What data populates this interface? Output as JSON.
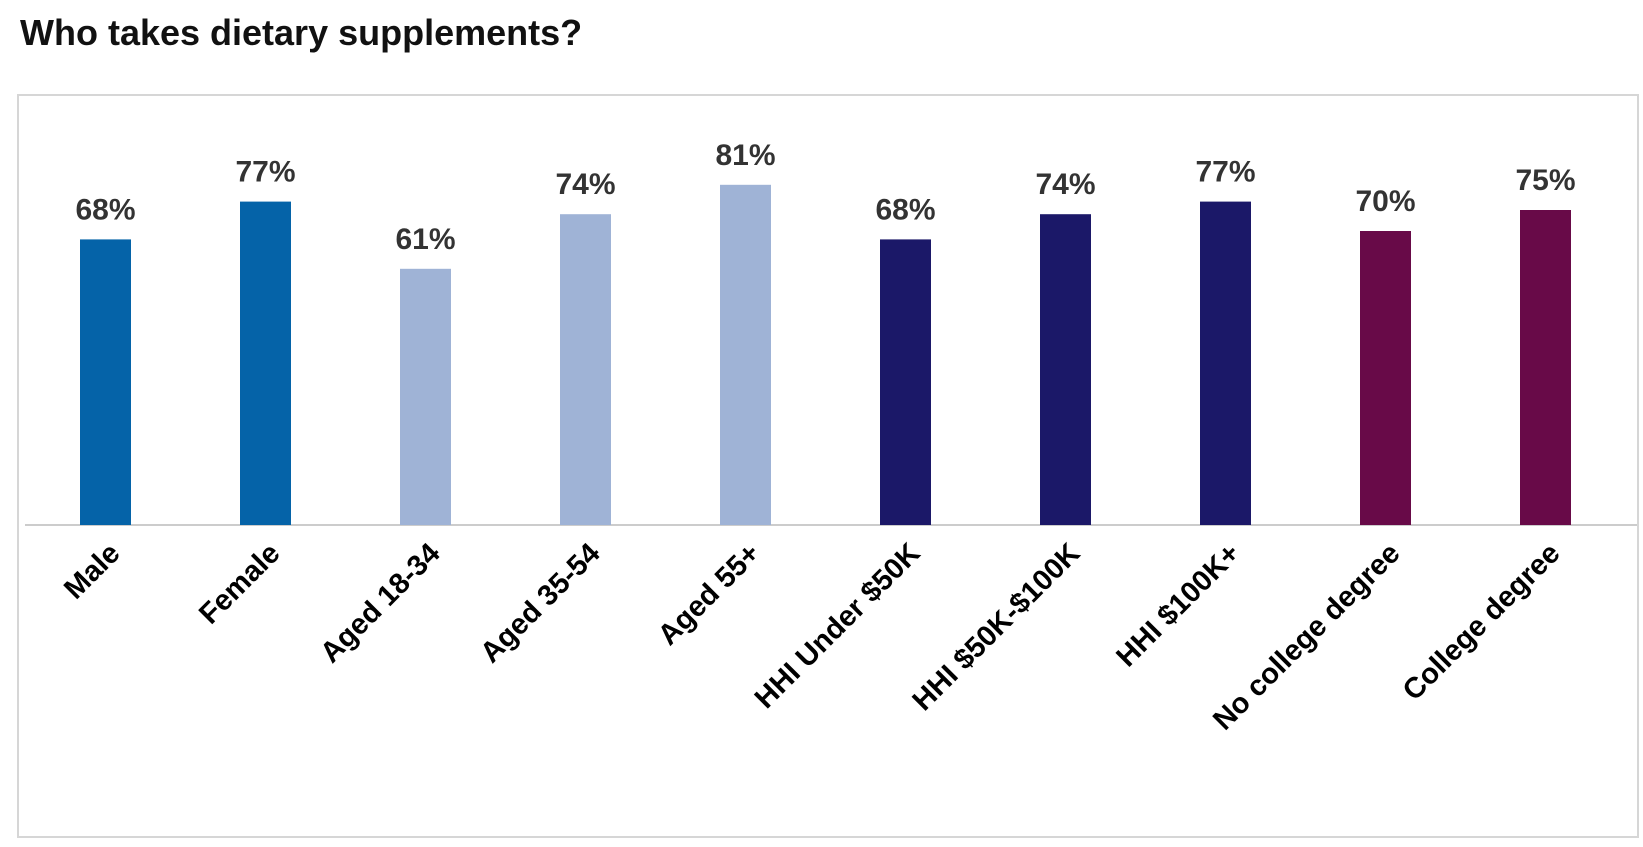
{
  "chart_data": {
    "type": "bar",
    "title": "Who takes dietary supplements?",
    "xlabel": "",
    "ylabel": "",
    "ylim": [
      0,
      100
    ],
    "grid": false,
    "categories": [
      "Male",
      "Female",
      "Aged 18-34",
      "Aged 35-54",
      "Aged 55+",
      "HHI Under $50K",
      "HHI $50K-$100K",
      "HHI $100K+",
      "No college degree",
      "College degree"
    ],
    "values": [
      68,
      77,
      61,
      74,
      81,
      68,
      74,
      77,
      70,
      75
    ],
    "value_labels": [
      "68%",
      "77%",
      "61%",
      "74%",
      "81%",
      "68%",
      "74%",
      "77%",
      "70%",
      "75%"
    ],
    "groups": [
      "gender",
      "gender",
      "age",
      "age",
      "age",
      "income",
      "income",
      "income",
      "education",
      "education"
    ],
    "colors": {
      "gender": "#0563a8",
      "age": "#9fb3d6",
      "income": "#1b1868",
      "education": "#680a48",
      "axis": "#cccccc",
      "label": "#333333"
    }
  }
}
